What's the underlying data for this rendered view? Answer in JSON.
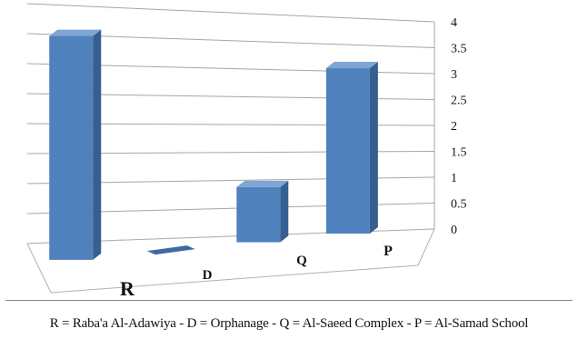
{
  "chart_data": {
    "type": "bar",
    "style": "3d-column",
    "categories": [
      "R",
      "D",
      "Q",
      "P"
    ],
    "values": [
      3.8,
      0,
      1,
      3.1
    ],
    "ylim": [
      0,
      4
    ],
    "yticks": [
      "0",
      "0.5",
      "1",
      "1.5",
      "2",
      "2.5",
      "3",
      "3.5",
      "4"
    ],
    "y_axis_position": "right",
    "grid": true,
    "legend": "none",
    "bar_color": "#4f81bd"
  },
  "caption": "R = Raba'a Al-Adawiya - D = Orphanage - Q = Al-Saeed Complex - P = Al-Samad School"
}
